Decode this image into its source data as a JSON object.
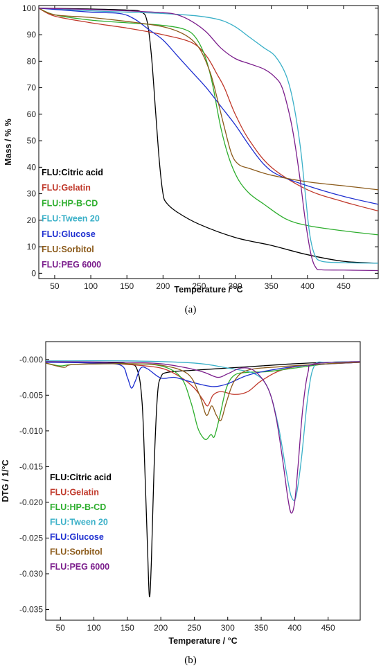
{
  "chart_data": [
    {
      "panel": "a",
      "type": "line",
      "caption": "(a)",
      "xlabel": "Temperature / °C",
      "ylabel": "Mass / % %",
      "xlim": [
        28,
        498
      ],
      "ylim": [
        -2,
        101
      ],
      "xticks": [
        50,
        100,
        150,
        200,
        250,
        300,
        350,
        400,
        450
      ],
      "yticks": [
        0,
        10,
        20,
        30,
        40,
        50,
        60,
        70,
        80,
        90,
        100
      ],
      "grid": false,
      "legend_position": "lower-left",
      "series": [
        {
          "name": "FLU:Citric acid",
          "color": "#000000",
          "points": [
            [
              28,
              100
            ],
            [
              100,
              99.7
            ],
            [
              150,
              99.3
            ],
            [
              170,
              98.6
            ],
            [
              178,
              95
            ],
            [
              184,
              82
            ],
            [
              190,
              60
            ],
            [
              195,
              42
            ],
            [
              200,
              30
            ],
            [
              205,
              26.5
            ],
            [
              220,
              23
            ],
            [
              250,
              18.5
            ],
            [
              300,
              13.5
            ],
            [
              350,
              10.5
            ],
            [
              400,
              7
            ],
            [
              450,
              4.5
            ],
            [
              498,
              3.8
            ]
          ]
        },
        {
          "name": "FLU:Gelatin",
          "color": "#c0392b",
          "points": [
            [
              28,
              100
            ],
            [
              50,
              97
            ],
            [
              100,
              94.5
            ],
            [
              150,
              92.5
            ],
            [
              200,
              90
            ],
            [
              240,
              87
            ],
            [
              260,
              82
            ],
            [
              275,
              75
            ],
            [
              285,
              70
            ],
            [
              300,
              60
            ],
            [
              320,
              50
            ],
            [
              350,
              40
            ],
            [
              400,
              31.5
            ],
            [
              450,
              27
            ],
            [
              498,
              23.5
            ]
          ]
        },
        {
          "name": "FLU:HP-B-CD",
          "color": "#2eae2e",
          "points": [
            [
              28,
              100
            ],
            [
              50,
              97.5
            ],
            [
              100,
              95.5
            ],
            [
              150,
              94.5
            ],
            [
              200,
              93.5
            ],
            [
              230,
              92
            ],
            [
              245,
              89
            ],
            [
              258,
              82
            ],
            [
              268,
              72
            ],
            [
              280,
              55
            ],
            [
              292,
              43
            ],
            [
              305,
              35
            ],
            [
              320,
              30
            ],
            [
              340,
              26
            ],
            [
              370,
              20.5
            ],
            [
              400,
              18
            ],
            [
              450,
              16
            ],
            [
              498,
              14.5
            ]
          ]
        },
        {
          "name": "FLU:Tween 20",
          "color": "#3ab0c8",
          "points": [
            [
              28,
              100
            ],
            [
              100,
              99
            ],
            [
              150,
              98.5
            ],
            [
              200,
              98
            ],
            [
              250,
              97
            ],
            [
              280,
              95.5
            ],
            [
              300,
              93
            ],
            [
              320,
              89
            ],
            [
              340,
              85
            ],
            [
              355,
              82
            ],
            [
              370,
              75
            ],
            [
              380,
              65
            ],
            [
              390,
              48
            ],
            [
              397,
              30
            ],
            [
              403,
              15
            ],
            [
              410,
              7
            ],
            [
              420,
              4.5
            ],
            [
              450,
              4
            ],
            [
              498,
              3.8
            ]
          ]
        },
        {
          "name": "FLU:Glucose",
          "color": "#1e2fd0",
          "points": [
            [
              28,
              100
            ],
            [
              100,
              98.5
            ],
            [
              140,
              98
            ],
            [
              160,
              96
            ],
            [
              180,
              92
            ],
            [
              200,
              88
            ],
            [
              220,
              82
            ],
            [
              240,
              76
            ],
            [
              260,
              70
            ],
            [
              280,
              63
            ],
            [
              300,
              56
            ],
            [
              320,
              48
            ],
            [
              340,
              41
            ],
            [
              360,
              37
            ],
            [
              400,
              33
            ],
            [
              450,
              29
            ],
            [
              498,
              26
            ]
          ]
        },
        {
          "name": "FLU:Sorbitol",
          "color": "#8b5a1a",
          "points": [
            [
              28,
              100
            ],
            [
              50,
              97.5
            ],
            [
              100,
              96.5
            ],
            [
              150,
              95
            ],
            [
              200,
              93
            ],
            [
              230,
              90
            ],
            [
              250,
              85
            ],
            [
              265,
              76
            ],
            [
              275,
              66
            ],
            [
              285,
              55
            ],
            [
              295,
              45
            ],
            [
              305,
              41
            ],
            [
              320,
              39.5
            ],
            [
              350,
              37
            ],
            [
              400,
              34.5
            ],
            [
              450,
              33
            ],
            [
              498,
              31.5
            ]
          ]
        },
        {
          "name": "FLU:PEG 6000",
          "color": "#7b1e8c",
          "points": [
            [
              28,
              100
            ],
            [
              100,
              99.5
            ],
            [
              150,
              99
            ],
            [
              200,
              98.3
            ],
            [
              220,
              97.5
            ],
            [
              240,
              95
            ],
            [
              260,
              91
            ],
            [
              280,
              85
            ],
            [
              300,
              81
            ],
            [
              320,
              79
            ],
            [
              340,
              77
            ],
            [
              355,
              74
            ],
            [
              365,
              70
            ],
            [
              375,
              60
            ],
            [
              382,
              50
            ],
            [
              390,
              35
            ],
            [
              397,
              20
            ],
            [
              405,
              7
            ],
            [
              412,
              2
            ],
            [
              420,
              1.3
            ],
            [
              450,
              1.2
            ],
            [
              498,
              1
            ]
          ]
        }
      ]
    },
    {
      "panel": "b",
      "type": "line",
      "caption": "(b)",
      "xlabel": "Temperature / °C",
      "ylabel": "DTG / 1/°C",
      "xlim": [
        28,
        498
      ],
      "ylim": [
        -0.0365,
        0.0025
      ],
      "xticks": [
        50,
        100,
        150,
        200,
        250,
        300,
        350,
        400,
        450
      ],
      "yticks": [
        0,
        -0.005,
        -0.01,
        -0.015,
        -0.02,
        -0.025,
        -0.03,
        -0.035
      ],
      "ytick_labels": [
        "-0.000",
        "-0.005",
        "-0.010",
        "-0.015",
        "-0.020",
        "-0.025",
        "-0.030",
        "-0.035"
      ],
      "grid": false,
      "legend_position": "middle-left",
      "series": [
        {
          "name": "FLU:Citric acid",
          "color": "#000000",
          "points": [
            [
              28,
              -0.0003
            ],
            [
              100,
              -0.0004
            ],
            [
              150,
              -0.0006
            ],
            [
              165,
              -0.0015
            ],
            [
              172,
              -0.006
            ],
            [
              176,
              -0.015
            ],
            [
              180,
              -0.026
            ],
            [
              183,
              -0.0332
            ],
            [
              186,
              -0.028
            ],
            [
              190,
              -0.015
            ],
            [
              195,
              -0.005
            ],
            [
              200,
              -0.0025
            ],
            [
              210,
              -0.0018
            ],
            [
              250,
              -0.0015
            ],
            [
              300,
              -0.0012
            ],
            [
              350,
              -0.0009
            ],
            [
              400,
              -0.0006
            ],
            [
              450,
              -0.0004
            ],
            [
              498,
              -0.0003
            ]
          ]
        },
        {
          "name": "FLU:Gelatin",
          "color": "#c0392b",
          "points": [
            [
              28,
              -0.0003
            ],
            [
              100,
              -0.0005
            ],
            [
              150,
              -0.0007
            ],
            [
              200,
              -0.0012
            ],
            [
              230,
              -0.0025
            ],
            [
              250,
              -0.004
            ],
            [
              262,
              -0.0055
            ],
            [
              270,
              -0.0065
            ],
            [
              278,
              -0.005
            ],
            [
              290,
              -0.0045
            ],
            [
              310,
              -0.0049
            ],
            [
              330,
              -0.0045
            ],
            [
              350,
              -0.003
            ],
            [
              380,
              -0.0015
            ],
            [
              420,
              -0.0008
            ],
            [
              498,
              -0.0004
            ]
          ]
        },
        {
          "name": "FLU:HP-B-CD",
          "color": "#2eae2e",
          "points": [
            [
              28,
              -0.0005
            ],
            [
              50,
              -0.0009
            ],
            [
              70,
              -0.0007
            ],
            [
              150,
              -0.0006
            ],
            [
              200,
              -0.0009
            ],
            [
              230,
              -0.0025
            ],
            [
              245,
              -0.006
            ],
            [
              255,
              -0.0095
            ],
            [
              262,
              -0.0108
            ],
            [
              268,
              -0.0112
            ],
            [
              275,
              -0.0105
            ],
            [
              280,
              -0.0108
            ],
            [
              288,
              -0.008
            ],
            [
              298,
              -0.004
            ],
            [
              310,
              -0.0022
            ],
            [
              330,
              -0.0018
            ],
            [
              360,
              -0.0017
            ],
            [
              400,
              -0.0012
            ],
            [
              450,
              -0.0006
            ],
            [
              498,
              -0.0004
            ]
          ]
        },
        {
          "name": "FLU:Tween 20",
          "color": "#3ab0c8",
          "points": [
            [
              28,
              -0.0002
            ],
            [
              150,
              -0.0002
            ],
            [
              250,
              -0.0005
            ],
            [
              300,
              -0.0012
            ],
            [
              340,
              -0.002
            ],
            [
              360,
              -0.004
            ],
            [
              375,
              -0.009
            ],
            [
              388,
              -0.016
            ],
            [
              395,
              -0.0192
            ],
            [
              402,
              -0.0192
            ],
            [
              410,
              -0.014
            ],
            [
              420,
              -0.005
            ],
            [
              430,
              -0.0008
            ],
            [
              450,
              -0.0004
            ],
            [
              498,
              -0.0003
            ]
          ]
        },
        {
          "name": "FLU:Glucose",
          "color": "#1e2fd0",
          "points": [
            [
              28,
              -0.0004
            ],
            [
              100,
              -0.0005
            ],
            [
              140,
              -0.0008
            ],
            [
              150,
              -0.0025
            ],
            [
              156,
              -0.004
            ],
            [
              162,
              -0.003
            ],
            [
              170,
              -0.0012
            ],
            [
              180,
              -0.0013
            ],
            [
              200,
              -0.0026
            ],
            [
              220,
              -0.0025
            ],
            [
              240,
              -0.003
            ],
            [
              260,
              -0.0035
            ],
            [
              280,
              -0.0038
            ],
            [
              300,
              -0.0034
            ],
            [
              330,
              -0.0022
            ],
            [
              370,
              -0.0014
            ],
            [
              420,
              -0.0008
            ],
            [
              498,
              -0.0004
            ]
          ]
        },
        {
          "name": "FLU:Sorbitol",
          "color": "#8b5a1a",
          "points": [
            [
              28,
              -0.0005
            ],
            [
              55,
              -0.0011
            ],
            [
              70,
              -0.0007
            ],
            [
              150,
              -0.0006
            ],
            [
              200,
              -0.0008
            ],
            [
              240,
              -0.002
            ],
            [
              258,
              -0.005
            ],
            [
              268,
              -0.0078
            ],
            [
              276,
              -0.0065
            ],
            [
              283,
              -0.0078
            ],
            [
              290,
              -0.0085
            ],
            [
              298,
              -0.006
            ],
            [
              310,
              -0.003
            ],
            [
              330,
              -0.0015
            ],
            [
              380,
              -0.001
            ],
            [
              450,
              -0.0006
            ],
            [
              498,
              -0.0004
            ]
          ]
        },
        {
          "name": "FLU:PEG 6000",
          "color": "#7b1e8c",
          "points": [
            [
              28,
              -0.0003
            ],
            [
              150,
              -0.0004
            ],
            [
              200,
              -0.0006
            ],
            [
              240,
              -0.0012
            ],
            [
              265,
              -0.0018
            ],
            [
              285,
              -0.0025
            ],
            [
              300,
              -0.002
            ],
            [
              320,
              -0.0012
            ],
            [
              340,
              -0.0016
            ],
            [
              360,
              -0.004
            ],
            [
              372,
              -0.008
            ],
            [
              382,
              -0.014
            ],
            [
              390,
              -0.0195
            ],
            [
              395,
              -0.0215
            ],
            [
              400,
              -0.02
            ],
            [
              405,
              -0.015
            ],
            [
              412,
              -0.007
            ],
            [
              420,
              -0.0018
            ],
            [
              430,
              -0.0006
            ],
            [
              498,
              -0.0003
            ]
          ]
        }
      ]
    }
  ]
}
